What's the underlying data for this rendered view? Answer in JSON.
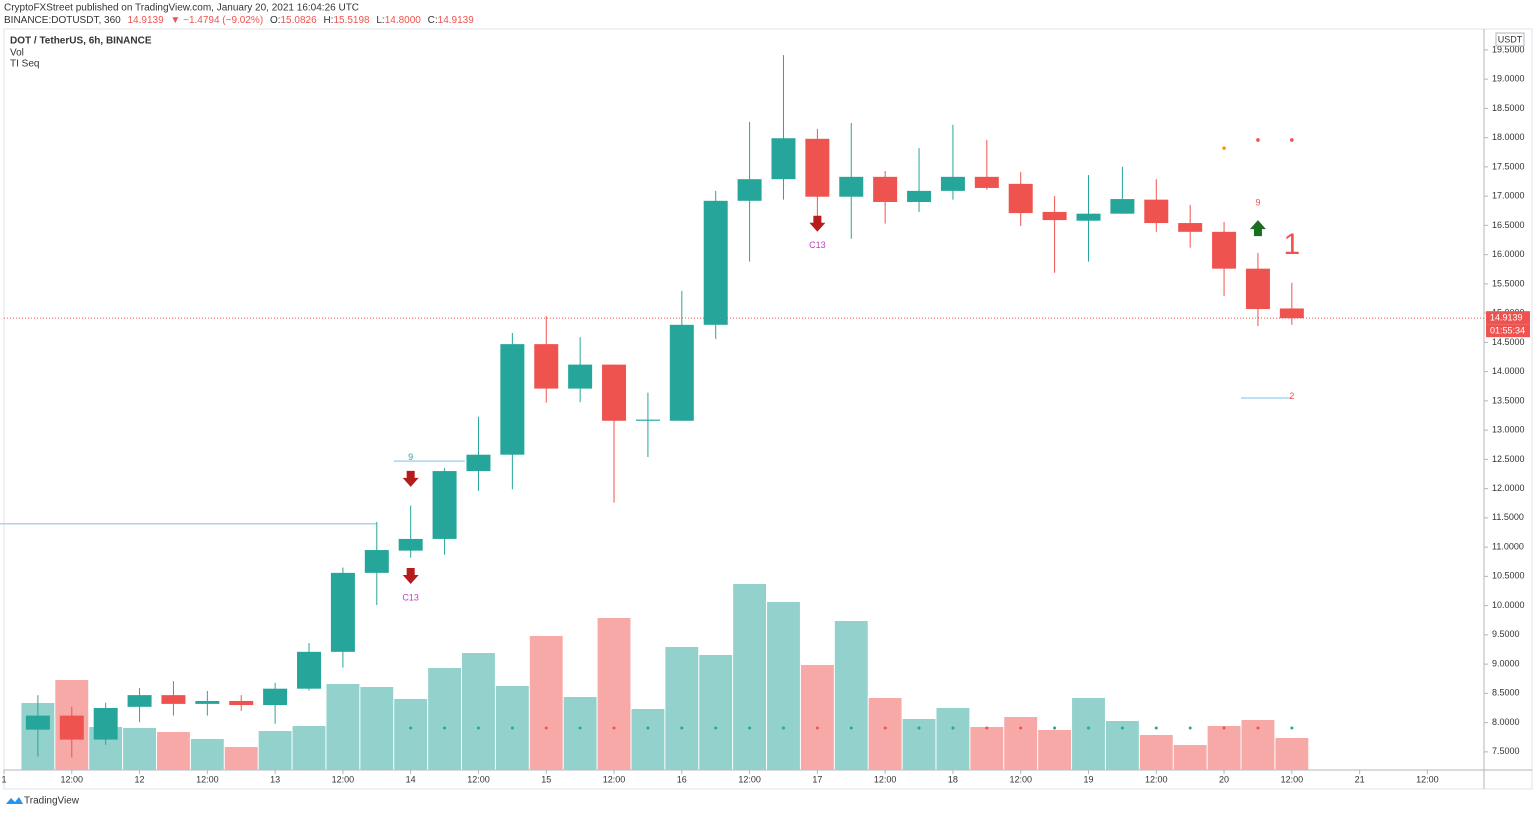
{
  "chart_data": {
    "type": "candlestick",
    "published": "CryptoFXStreet published on TradingView.com, January 20, 2021 16:04:26 UTC",
    "symbol_line": {
      "symbol": "BINANCE:DOTUSDT, 360",
      "last": "14.9139",
      "change": "▼ −1.4794 (−9.02%)",
      "ohlc": [
        {
          "label": "O:",
          "value": "15.0826"
        },
        {
          "label": "H:",
          "value": "15.5198"
        },
        {
          "label": "L:",
          "value": "14.8000"
        },
        {
          "label": "C:",
          "value": "14.9139"
        }
      ]
    },
    "legend": [
      "DOT / TetherUS, 6h, BINANCE",
      "Vol",
      "TI Seq"
    ],
    "currency": "USDT",
    "countdown": "01:55:34",
    "brand": "TradingView",
    "up_color": "#26a69a",
    "down_color": "#ef5350",
    "volume_up_color": "#93d2cc",
    "volume_down_color": "#f7a9a7",
    "x": [
      0,
      1,
      2,
      3,
      4,
      5,
      6,
      7,
      8,
      9,
      10,
      11,
      12,
      13,
      14,
      15,
      16,
      17,
      18,
      19,
      20,
      21,
      22,
      23,
      24,
      25,
      26,
      27,
      28,
      29,
      30,
      31,
      32,
      33,
      34,
      35,
      36,
      37
    ],
    "open": [
      7.88,
      8.12,
      7.71,
      8.27,
      8.47,
      8.32,
      8.37,
      8.3,
      8.58,
      9.21,
      10.56,
      10.94,
      11.14,
      12.3,
      12.58,
      14.47,
      13.71,
      14.12,
      13.16,
      13.16,
      14.8,
      16.92,
      17.29,
      17.98,
      16.99,
      17.33,
      16.9,
      17.09,
      17.33,
      17.21,
      16.73,
      16.58,
      16.7,
      16.94,
      16.54,
      16.39,
      15.76,
      15.08
    ],
    "high": [
      8.47,
      8.27,
      8.34,
      8.59,
      8.71,
      8.54,
      8.47,
      8.68,
      9.36,
      10.65,
      11.43,
      11.71,
      12.35,
      13.23,
      14.66,
      14.95,
      14.59,
      14.12,
      13.64,
      15.38,
      17.09,
      18.27,
      19.41,
      18.15,
      18.25,
      17.43,
      17.82,
      18.22,
      17.96,
      17.41,
      17.0,
      17.36,
      17.5,
      17.29,
      16.85,
      16.56,
      16.03,
      15.52
    ],
    "low": [
      7.42,
      7.4,
      7.62,
      8.01,
      8.12,
      8.12,
      8.2,
      7.98,
      8.55,
      8.94,
      10.01,
      10.82,
      10.87,
      11.96,
      11.99,
      13.47,
      13.48,
      11.76,
      12.54,
      13.16,
      14.56,
      15.88,
      16.94,
      16.51,
      16.27,
      16.53,
      16.73,
      16.94,
      17.11,
      16.49,
      15.69,
      15.88,
      16.7,
      16.39,
      16.12,
      15.29,
      14.78,
      14.8
    ],
    "close": [
      8.12,
      7.71,
      8.25,
      8.47,
      8.32,
      8.37,
      8.3,
      8.58,
      9.21,
      10.56,
      10.95,
      11.14,
      12.3,
      12.58,
      14.47,
      13.71,
      14.12,
      13.16,
      13.18,
      14.8,
      16.92,
      17.29,
      17.99,
      16.99,
      17.33,
      16.9,
      17.09,
      17.33,
      17.14,
      16.71,
      16.59,
      16.7,
      16.95,
      16.54,
      16.39,
      15.76,
      15.07,
      14.9139
    ],
    "volume": [
      67,
      90,
      43,
      42,
      38,
      31,
      23,
      39,
      44,
      86,
      83,
      71,
      102,
      117,
      84,
      134,
      73,
      152,
      61,
      123,
      115,
      186,
      168,
      105,
      149,
      72,
      51,
      62,
      43,
      53,
      40,
      72,
      49,
      35,
      25,
      44,
      50,
      32
    ],
    "volume_lim": [
      0,
      200
    ],
    "setup_dots": [
      null,
      null,
      null,
      null,
      null,
      null,
      null,
      null,
      null,
      null,
      null,
      "#26a69a",
      "#26a69a",
      "#26a69a",
      "#26a69a",
      "#ef5350",
      "#26a69a",
      "#ef5350",
      "#26a69a",
      "#26a69a",
      "#26a69a",
      "#26a69a",
      "#26a69a",
      "#ef5350",
      "#26a69a",
      "#ef5350",
      "#26a69a",
      "#26a69a",
      "#ef5350",
      "#ef5350",
      "#26a69a",
      "#26a69a",
      "#26a69a",
      "#26a69a",
      "#26a69a",
      "#ef5350",
      "#ef5350",
      "#26a69a"
    ],
    "last_price": {
      "value": 14.9139,
      "label": "14.9139"
    },
    "levels": [
      {
        "price": 11.4,
        "from": -1,
        "to": 10
      },
      {
        "price": 12.47,
        "from": 11,
        "to": 12.6
      },
      {
        "price": 13.55,
        "from": 36,
        "to": 37
      }
    ],
    "arrows": [
      {
        "x": 11,
        "price": 12.15,
        "dir": "down"
      },
      {
        "x": 11,
        "price": 10.49,
        "dir": "down"
      },
      {
        "x": 23,
        "price": 16.51,
        "dir": "down"
      },
      {
        "x": 36,
        "price": 16.47,
        "dir": "up"
      }
    ],
    "annotations": [
      {
        "text": "9",
        "x": 11,
        "price": 12.53,
        "color": "#26a69a",
        "size": 9
      },
      {
        "text": "C13",
        "x": 11,
        "price": 10.13,
        "color": "#c040c0",
        "size": 9
      },
      {
        "text": "C13",
        "x": 23,
        "price": 16.15,
        "color": "#c040c0",
        "size": 9
      },
      {
        "text": "9",
        "x": 36,
        "price": 16.88,
        "color": "#ef5350",
        "size": 9
      },
      {
        "text": "1",
        "x": 37,
        "price": 16.15,
        "color": "#ef5350",
        "size": 30
      },
      {
        "text": "2",
        "x": 37,
        "price": 13.57,
        "color": "#ef5350",
        "size": 9
      }
    ],
    "top_dots": [
      {
        "x": 35,
        "price": 17.82,
        "color": "#ff9800"
      },
      {
        "x": 36,
        "price": 17.96,
        "color": "#ef5350"
      },
      {
        "x": 37,
        "price": 17.96,
        "color": "#ef5350"
      }
    ],
    "xlim": [
      -1.0,
      42.67
    ],
    "xticks": [
      {
        "value": -1,
        "label": "1"
      },
      {
        "value": 1,
        "label": "12:00"
      },
      {
        "value": 3,
        "label": "12"
      },
      {
        "value": 5,
        "label": "12:00"
      },
      {
        "value": 7,
        "label": "13"
      },
      {
        "value": 9,
        "label": "12:00"
      },
      {
        "value": 11,
        "label": "14"
      },
      {
        "value": 13,
        "label": "12:00"
      },
      {
        "value": 15,
        "label": "15"
      },
      {
        "value": 17,
        "label": "12:00"
      },
      {
        "value": 19,
        "label": "16"
      },
      {
        "value": 21,
        "label": "12:00"
      },
      {
        "value": 23,
        "label": "17"
      },
      {
        "value": 25,
        "label": "12:00"
      },
      {
        "value": 27,
        "label": "18"
      },
      {
        "value": 29,
        "label": "12:00"
      },
      {
        "value": 31,
        "label": "19"
      },
      {
        "value": 33,
        "label": "12:00"
      },
      {
        "value": 35,
        "label": "20"
      },
      {
        "value": 37,
        "label": "12:00"
      },
      {
        "value": 39,
        "label": "21"
      },
      {
        "value": 41,
        "label": "12:00"
      }
    ],
    "ylim": [
      7.19,
      19.84
    ],
    "yticks": [
      {
        "value": 7.5,
        "label": "7.5000"
      },
      {
        "value": 8,
        "label": "8.0000"
      },
      {
        "value": 8.5,
        "label": "8.5000"
      },
      {
        "value": 9,
        "label": "9.0000"
      },
      {
        "value": 9.5,
        "label": "9.5000"
      },
      {
        "value": 10,
        "label": "10.0000"
      },
      {
        "value": 10.5,
        "label": "10.5000"
      },
      {
        "value": 11,
        "label": "11.0000"
      },
      {
        "value": 11.5,
        "label": "11.5000"
      },
      {
        "value": 12,
        "label": "12.0000"
      },
      {
        "value": 12.5,
        "label": "12.5000"
      },
      {
        "value": 13,
        "label": "13.0000"
      },
      {
        "value": 13.5,
        "label": "13.5000"
      },
      {
        "value": 14,
        "label": "14.0000"
      },
      {
        "value": 14.5,
        "label": "14.5000"
      },
      {
        "value": 15,
        "label": "15.0000"
      },
      {
        "value": 15.5,
        "label": "15.5000"
      },
      {
        "value": 16,
        "label": "16.0000"
      },
      {
        "value": 16.5,
        "label": "16.5000"
      },
      {
        "value": 17,
        "label": "17.0000"
      },
      {
        "value": 17.5,
        "label": "17.5000"
      },
      {
        "value": 18,
        "label": "18.0000"
      },
      {
        "value": 18.5,
        "label": "18.5000"
      },
      {
        "value": 19,
        "label": "19.0000"
      },
      {
        "value": 19.5,
        "label": "19.5000"
      }
    ],
    "grid": false
  }
}
